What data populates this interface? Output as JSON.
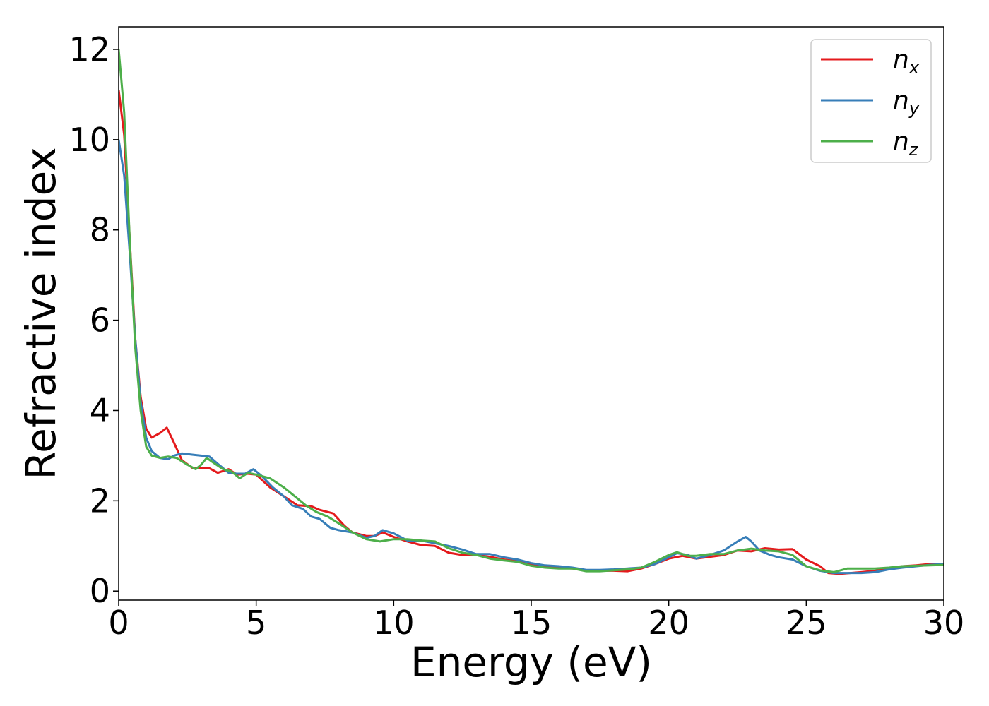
{
  "chart_data": {
    "type": "line",
    "title": "",
    "xlabel": "Energy (eV)",
    "ylabel": "Refractive index",
    "xlim": [
      0,
      30
    ],
    "ylim": [
      -0.2,
      12.5
    ],
    "xticks": [
      "0",
      "5",
      "10",
      "15",
      "20",
      "25",
      "30"
    ],
    "yticks": [
      "0",
      "2",
      "4",
      "6",
      "8",
      "10",
      "12"
    ],
    "grid": false,
    "legend_position": "top-right",
    "series": [
      {
        "name": "n",
        "subscript": "x",
        "color": "#e41a1c",
        "points": [
          [
            0,
            11.1
          ],
          [
            0.2,
            10.1
          ],
          [
            0.4,
            7.8
          ],
          [
            0.6,
            5.6
          ],
          [
            0.8,
            4.3
          ],
          [
            1.0,
            3.6
          ],
          [
            1.2,
            3.4
          ],
          [
            1.5,
            3.5
          ],
          [
            1.75,
            3.62
          ],
          [
            2.0,
            3.3
          ],
          [
            2.3,
            2.9
          ],
          [
            2.7,
            2.72
          ],
          [
            3.0,
            2.72
          ],
          [
            3.3,
            2.72
          ],
          [
            3.6,
            2.62
          ],
          [
            4.0,
            2.7
          ],
          [
            4.3,
            2.58
          ],
          [
            4.7,
            2.6
          ],
          [
            5.0,
            2.58
          ],
          [
            5.5,
            2.3
          ],
          [
            6.0,
            2.1
          ],
          [
            6.5,
            1.9
          ],
          [
            7.0,
            1.88
          ],
          [
            7.3,
            1.8
          ],
          [
            7.8,
            1.72
          ],
          [
            8.2,
            1.45
          ],
          [
            8.5,
            1.3
          ],
          [
            9.0,
            1.22
          ],
          [
            9.3,
            1.22
          ],
          [
            9.6,
            1.3
          ],
          [
            10.0,
            1.2
          ],
          [
            10.5,
            1.1
          ],
          [
            11.0,
            1.02
          ],
          [
            11.5,
            1.0
          ],
          [
            12.0,
            0.85
          ],
          [
            12.5,
            0.8
          ],
          [
            13.0,
            0.8
          ],
          [
            13.5,
            0.76
          ],
          [
            14.0,
            0.7
          ],
          [
            14.5,
            0.66
          ],
          [
            15.0,
            0.58
          ],
          [
            15.5,
            0.54
          ],
          [
            16.0,
            0.52
          ],
          [
            16.5,
            0.5
          ],
          [
            17.0,
            0.46
          ],
          [
            17.5,
            0.45
          ],
          [
            18.0,
            0.45
          ],
          [
            18.5,
            0.44
          ],
          [
            19.0,
            0.5
          ],
          [
            19.5,
            0.6
          ],
          [
            20.0,
            0.72
          ],
          [
            20.5,
            0.78
          ],
          [
            21.0,
            0.72
          ],
          [
            21.5,
            0.76
          ],
          [
            22.0,
            0.8
          ],
          [
            22.5,
            0.9
          ],
          [
            23.0,
            0.88
          ],
          [
            23.5,
            0.95
          ],
          [
            24.0,
            0.92
          ],
          [
            24.5,
            0.93
          ],
          [
            25.0,
            0.7
          ],
          [
            25.5,
            0.55
          ],
          [
            25.8,
            0.4
          ],
          [
            26.2,
            0.38
          ],
          [
            27.0,
            0.42
          ],
          [
            27.5,
            0.45
          ],
          [
            28.0,
            0.5
          ],
          [
            28.5,
            0.55
          ],
          [
            29.0,
            0.57
          ],
          [
            29.5,
            0.6
          ],
          [
            30.0,
            0.6
          ]
        ]
      },
      {
        "name": "n",
        "subscript": "y",
        "color": "#377eb8",
        "points": [
          [
            0,
            10.0
          ],
          [
            0.2,
            9.2
          ],
          [
            0.4,
            7.5
          ],
          [
            0.6,
            5.6
          ],
          [
            0.8,
            4.2
          ],
          [
            1.0,
            3.4
          ],
          [
            1.2,
            3.1
          ],
          [
            1.5,
            2.95
          ],
          [
            1.8,
            2.92
          ],
          [
            2.0,
            3.0
          ],
          [
            2.3,
            3.05
          ],
          [
            2.7,
            3.02
          ],
          [
            3.0,
            3.0
          ],
          [
            3.3,
            2.98
          ],
          [
            3.6,
            2.82
          ],
          [
            4.0,
            2.62
          ],
          [
            4.3,
            2.6
          ],
          [
            4.6,
            2.6
          ],
          [
            4.9,
            2.7
          ],
          [
            5.2,
            2.55
          ],
          [
            5.6,
            2.3
          ],
          [
            6.0,
            2.1
          ],
          [
            6.3,
            1.9
          ],
          [
            6.7,
            1.82
          ],
          [
            7.0,
            1.65
          ],
          [
            7.3,
            1.6
          ],
          [
            7.7,
            1.4
          ],
          [
            8.0,
            1.35
          ],
          [
            8.5,
            1.3
          ],
          [
            9.0,
            1.18
          ],
          [
            9.3,
            1.22
          ],
          [
            9.6,
            1.35
          ],
          [
            10.0,
            1.28
          ],
          [
            10.5,
            1.12
          ],
          [
            11.0,
            1.12
          ],
          [
            11.5,
            1.06
          ],
          [
            12.0,
            1.0
          ],
          [
            12.5,
            0.92
          ],
          [
            13.0,
            0.82
          ],
          [
            13.5,
            0.82
          ],
          [
            14.0,
            0.75
          ],
          [
            14.5,
            0.7
          ],
          [
            15.0,
            0.62
          ],
          [
            15.5,
            0.57
          ],
          [
            16.0,
            0.55
          ],
          [
            16.5,
            0.52
          ],
          [
            17.0,
            0.47
          ],
          [
            17.5,
            0.47
          ],
          [
            18.0,
            0.48
          ],
          [
            18.5,
            0.5
          ],
          [
            19.0,
            0.52
          ],
          [
            19.5,
            0.6
          ],
          [
            20.0,
            0.75
          ],
          [
            20.3,
            0.84
          ],
          [
            20.7,
            0.8
          ],
          [
            21.0,
            0.72
          ],
          [
            21.5,
            0.8
          ],
          [
            22.0,
            0.9
          ],
          [
            22.5,
            1.1
          ],
          [
            22.8,
            1.2
          ],
          [
            23.0,
            1.1
          ],
          [
            23.3,
            0.9
          ],
          [
            23.7,
            0.8
          ],
          [
            24.0,
            0.75
          ],
          [
            24.5,
            0.7
          ],
          [
            25.0,
            0.55
          ],
          [
            25.5,
            0.45
          ],
          [
            26.0,
            0.4
          ],
          [
            26.5,
            0.4
          ],
          [
            27.0,
            0.4
          ],
          [
            27.5,
            0.42
          ],
          [
            28.0,
            0.48
          ],
          [
            28.5,
            0.52
          ],
          [
            29.0,
            0.55
          ],
          [
            29.5,
            0.58
          ],
          [
            30.0,
            0.6
          ]
        ]
      },
      {
        "name": "n",
        "subscript": "z",
        "color": "#4daf4a",
        "points": [
          [
            0,
            12.0
          ],
          [
            0.2,
            10.6
          ],
          [
            0.4,
            7.8
          ],
          [
            0.6,
            5.4
          ],
          [
            0.8,
            4.0
          ],
          [
            1.0,
            3.2
          ],
          [
            1.2,
            3.0
          ],
          [
            1.5,
            2.95
          ],
          [
            1.8,
            2.98
          ],
          [
            2.1,
            2.95
          ],
          [
            2.5,
            2.8
          ],
          [
            2.8,
            2.7
          ],
          [
            3.0,
            2.8
          ],
          [
            3.2,
            2.95
          ],
          [
            3.5,
            2.82
          ],
          [
            3.8,
            2.7
          ],
          [
            4.1,
            2.65
          ],
          [
            4.4,
            2.5
          ],
          [
            4.7,
            2.62
          ],
          [
            5.0,
            2.58
          ],
          [
            5.5,
            2.5
          ],
          [
            6.0,
            2.3
          ],
          [
            6.5,
            2.05
          ],
          [
            6.8,
            1.9
          ],
          [
            7.2,
            1.75
          ],
          [
            7.6,
            1.65
          ],
          [
            8.0,
            1.5
          ],
          [
            8.5,
            1.3
          ],
          [
            9.0,
            1.15
          ],
          [
            9.5,
            1.1
          ],
          [
            10.0,
            1.15
          ],
          [
            10.5,
            1.15
          ],
          [
            11.0,
            1.12
          ],
          [
            11.5,
            1.1
          ],
          [
            12.0,
            0.95
          ],
          [
            12.5,
            0.85
          ],
          [
            13.0,
            0.8
          ],
          [
            13.5,
            0.72
          ],
          [
            14.0,
            0.68
          ],
          [
            14.5,
            0.65
          ],
          [
            15.0,
            0.56
          ],
          [
            15.5,
            0.52
          ],
          [
            16.0,
            0.5
          ],
          [
            16.5,
            0.5
          ],
          [
            17.0,
            0.44
          ],
          [
            17.5,
            0.44
          ],
          [
            18.0,
            0.46
          ],
          [
            18.5,
            0.48
          ],
          [
            19.0,
            0.52
          ],
          [
            19.5,
            0.65
          ],
          [
            20.0,
            0.8
          ],
          [
            20.3,
            0.86
          ],
          [
            20.7,
            0.78
          ],
          [
            21.0,
            0.78
          ],
          [
            21.5,
            0.82
          ],
          [
            22.0,
            0.82
          ],
          [
            22.5,
            0.9
          ],
          [
            23.0,
            0.94
          ],
          [
            23.5,
            0.9
          ],
          [
            24.0,
            0.88
          ],
          [
            24.5,
            0.8
          ],
          [
            25.0,
            0.55
          ],
          [
            25.5,
            0.46
          ],
          [
            26.0,
            0.42
          ],
          [
            26.5,
            0.5
          ],
          [
            27.0,
            0.5
          ],
          [
            27.5,
            0.5
          ],
          [
            28.0,
            0.52
          ],
          [
            28.5,
            0.55
          ],
          [
            29.0,
            0.56
          ],
          [
            29.5,
            0.57
          ],
          [
            30.0,
            0.58
          ]
        ]
      }
    ]
  }
}
